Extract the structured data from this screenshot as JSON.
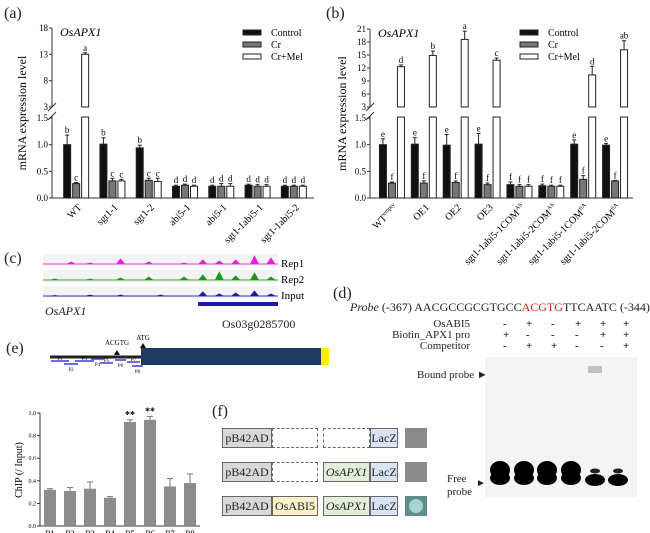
{
  "panels": {
    "a": {
      "label": "(a)"
    },
    "b": {
      "label": "(b)"
    },
    "c": {
      "label": "(c)"
    },
    "d": {
      "label": "(d)"
    },
    "e": {
      "label": "(e)"
    },
    "f": {
      "label": "(f)"
    }
  },
  "chart_data": [
    {
      "id": "a",
      "type": "bar",
      "title": "OsAPX1",
      "ylabel": "mRNA expression level",
      "xlabel": "",
      "broken_axis": true,
      "ylim_lower": [
        0,
        1.5
      ],
      "ylim_upper": [
        3,
        18
      ],
      "yticks_lower": [
        "0.0",
        "0.5",
        "1.0",
        "1.5"
      ],
      "yticks_upper": [
        "3",
        "8",
        "13",
        "18"
      ],
      "legend": [
        "Control",
        "Cr",
        "Cr+Mel"
      ],
      "legend_position": "top-right",
      "series_colors": [
        "#111111",
        "#777777",
        "#ffffff"
      ],
      "categories": [
        "WT",
        "sgt1-1",
        "sgt1-2",
        "abi5-1",
        "abi5-1",
        "sgt1-1abi5-1",
        "sgt1-1abi5-2"
      ],
      "series": [
        {
          "name": "Control",
          "values": [
            1.0,
            1.01,
            0.94,
            0.22,
            0.22,
            0.24,
            0.22
          ],
          "errors": [
            0.18,
            0.12,
            0.05,
            0.02,
            0.02,
            0.02,
            0.02
          ],
          "letters": [
            "b",
            "b",
            "b",
            "d",
            "d",
            "d",
            "d"
          ]
        },
        {
          "name": "Cr",
          "values": [
            0.27,
            0.32,
            0.33,
            0.24,
            0.22,
            0.22,
            0.22
          ],
          "errors": [
            0.02,
            0.05,
            0.04,
            0.02,
            0.05,
            0.03,
            0.02
          ],
          "letters": [
            "c",
            "c",
            "c",
            "d",
            "d",
            "d",
            "d"
          ]
        },
        {
          "name": "Cr+Mel",
          "values": [
            13.0,
            0.32,
            0.31,
            0.22,
            0.22,
            0.22,
            0.22
          ],
          "errors": [
            0.3,
            0.03,
            0.06,
            0.02,
            0.05,
            0.03,
            0.02
          ],
          "letters": [
            "a",
            "c",
            "c",
            "d",
            "d",
            "d",
            "d"
          ]
        }
      ]
    },
    {
      "id": "b",
      "type": "bar",
      "title": "OsAPX1",
      "ylabel": "mRNA expression level",
      "xlabel": "",
      "broken_axis": true,
      "ylim_lower": [
        0,
        1.5
      ],
      "ylim_upper": [
        3,
        21
      ],
      "yticks_lower": [
        "0.0",
        "0.5",
        "1.0",
        "1.5"
      ],
      "yticks_upper": [
        "3",
        "6",
        "9",
        "12",
        "15",
        "18",
        "21"
      ],
      "legend": [
        "Control",
        "Cr",
        "Cr+Mel"
      ],
      "legend_position": "top-right",
      "series_colors": [
        "#111111",
        "#777777",
        "#ffffff"
      ],
      "categories": [
        {
          "main": "WT",
          "sup": "empty"
        },
        {
          "main": "OE1",
          "sup": ""
        },
        {
          "main": "OE2",
          "sup": ""
        },
        {
          "main": "OE3",
          "sup": ""
        },
        {
          "main": "sgt1-1abi5-1COM",
          "sup": "AS"
        },
        {
          "main": "sgt1-1abi5-2COM",
          "sup": "AS"
        },
        {
          "main": "sgt1-1abi5-1COM",
          "sup": "SA"
        },
        {
          "main": "sgt1-1abi5-2COM",
          "sup": "SA"
        }
      ],
      "series": [
        {
          "name": "Control",
          "values": [
            1.0,
            1.01,
            0.99,
            1.01,
            0.25,
            0.23,
            1.01,
            0.99
          ],
          "errors": [
            0.11,
            0.12,
            0.2,
            0.2,
            0.05,
            0.03,
            0.08,
            0.03
          ],
          "letters": [
            "e",
            "e",
            "e",
            "e",
            "f",
            "f",
            "e",
            "e"
          ]
        },
        {
          "name": "Cr",
          "values": [
            0.28,
            0.28,
            0.29,
            0.25,
            0.22,
            0.22,
            0.35,
            0.32
          ],
          "errors": [
            0.02,
            0.04,
            0.03,
            0.03,
            0.03,
            0.02,
            0.07,
            0.01
          ],
          "letters": [
            "f",
            "f",
            "f",
            "f",
            "f",
            "f",
            "f",
            "f"
          ]
        },
        {
          "name": "Cr+Mel",
          "values": [
            12.3,
            14.9,
            18.6,
            13.8,
            0.22,
            0.22,
            10.4,
            16.2
          ],
          "errors": [
            0.4,
            1.0,
            1.9,
            0.5,
            0.03,
            0.02,
            2.0,
            2.1
          ],
          "letters": [
            "d",
            "b",
            "a",
            "c",
            "f",
            "f",
            "d",
            "ab"
          ]
        }
      ]
    },
    {
      "id": "e",
      "type": "bar",
      "title": "",
      "ylabel": "ChIP (/ Input)",
      "xlabel": "",
      "ylim": [
        0,
        1.0
      ],
      "yticks": [
        "0.0",
        "0.2",
        "0.4",
        "0.6",
        "0.8",
        "1.0"
      ],
      "categories": [
        "P1",
        "P2",
        "P3",
        "P4",
        "P5",
        "P6",
        "P7",
        "P8"
      ],
      "values": [
        0.32,
        0.31,
        0.33,
        0.25,
        0.92,
        0.94,
        0.35,
        0.38
      ],
      "errors": [
        0.01,
        0.03,
        0.06,
        0.01,
        0.02,
        0.03,
        0.07,
        0.08
      ],
      "annotations": [
        "",
        "",
        "",
        "",
        "**",
        "**",
        "",
        ""
      ],
      "bar_color": "#8c8c8c"
    }
  ],
  "tracks": {
    "rows": [
      {
        "label": "Rep1",
        "color": "#e81fe0"
      },
      {
        "label": "Rep2",
        "color": "#1a9a1a"
      },
      {
        "label": "Input",
        "color": "#1c1ca8"
      }
    ],
    "gene_left_label": "OsAPX1",
    "gene_id": "Os03g0285700",
    "gene_color": "#1c1ca8"
  },
  "gene_structure": {
    "motif_label": "ACGTG",
    "start_label": "ATG",
    "promoter_color": "#222222",
    "cds_color": "#1f3a5f",
    "utr_color": "#ffee00",
    "fragments": [
      "P1",
      "P2",
      "P3",
      "P4",
      "P5",
      "P6",
      "P7",
      "P8"
    ],
    "fragment_color": "#3a3ad0"
  },
  "emsa": {
    "probe_prefix": "Probe",
    "probe_start": "(-367)",
    "seq_before": "AACGCCGCGTGCC",
    "seq_motif": "ACGTG",
    "seq_after": "TTCAATC",
    "probe_end": "(-344)",
    "motif_color": "#e02020",
    "rows": [
      {
        "label": "OsABI5",
        "values": [
          "-",
          "+",
          "-",
          "+",
          "+",
          "+"
        ]
      },
      {
        "label": "Biotin_APX1 pro",
        "values": [
          "+",
          "-",
          "-",
          "-",
          "+",
          "+"
        ]
      },
      {
        "label": "Competitor",
        "values": [
          "-",
          "+",
          "+",
          "-",
          "-",
          "+"
        ]
      }
    ],
    "bound_label": "Bound probe",
    "free_label_line1": "Free",
    "free_label_line2": "probe"
  },
  "y1h": {
    "rows": [
      {
        "ad": "pB42AD",
        "tf": "",
        "promoter": "",
        "reporter": "LacZ",
        "result": "negative"
      },
      {
        "ad": "pB42AD",
        "tf": "",
        "promoter": "OsAPX1",
        "reporter": "LacZ",
        "result": "negative"
      },
      {
        "ad": "pB42AD",
        "tf": "OsABI5",
        "promoter": "OsAPX1",
        "reporter": "LacZ",
        "result": "positive"
      }
    ],
    "colors": {
      "ad": "#d9d9d9",
      "tf": "#fbf1c8",
      "promoter": "#e2efda",
      "reporter": "#dae3f3",
      "negative": "#8a8a8a",
      "positive": "#6ea8a2"
    }
  }
}
